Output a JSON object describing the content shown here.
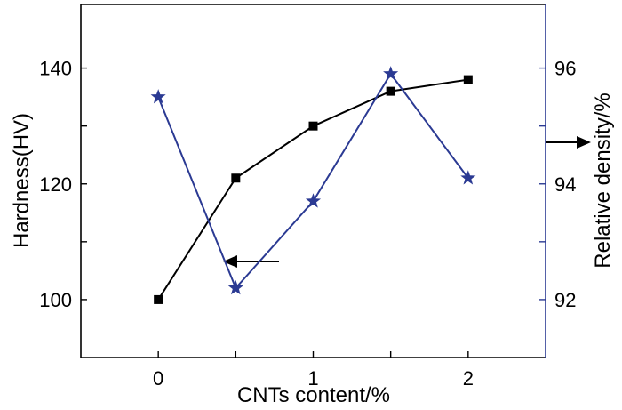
{
  "chart_data": {
    "type": "line",
    "xlabel": "CNTs content/%",
    "ylabel_left": "Hardness(HV)",
    "ylabel_right": "Relative density/%",
    "xlim": [
      -0.5,
      2.5
    ],
    "ylim_left": [
      90,
      151
    ],
    "ylim_right": [
      91,
      97.1
    ],
    "x_ticks": [
      0,
      0.5,
      1,
      1.5,
      2
    ],
    "x_tick_labels": [
      "0",
      "",
      "1",
      "",
      "2"
    ],
    "y_left_ticks": [
      100,
      110,
      120,
      130,
      140
    ],
    "y_left_tick_labels": [
      "100",
      "",
      "120",
      "",
      "140"
    ],
    "y_right_ticks": [
      92,
      93,
      94,
      95,
      96
    ],
    "y_right_tick_labels": [
      "92",
      "",
      "94",
      "",
      "96"
    ],
    "series": [
      {
        "axis": "left",
        "color": "#000000",
        "marker": "square",
        "x": [
          0,
          0.5,
          1,
          1.5,
          2
        ],
        "values": [
          100,
          121,
          130,
          136,
          138
        ]
      },
      {
        "axis": "right",
        "color": "#2b3a93",
        "marker": "star",
        "x": [
          0,
          0.5,
          1,
          1.5,
          2
        ],
        "values": [
          95.5,
          92.2,
          93.7,
          95.9,
          94.1
        ]
      }
    ],
    "annotations": [
      {
        "type": "arrow",
        "direction": "left",
        "points_to": "left-axis"
      },
      {
        "type": "arrow",
        "direction": "right",
        "points_to": "right-axis"
      }
    ],
    "right_axis_color": "#2b3a93",
    "grid": false
  }
}
